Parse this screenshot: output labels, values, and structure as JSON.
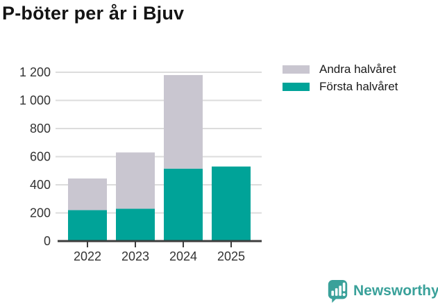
{
  "title": "P-böter per år i Bjuv",
  "legend": {
    "items": [
      {
        "label": "Andra halvåret",
        "color": "#c9c6d0"
      },
      {
        "label": "Första halvåret",
        "color": "#00a398"
      }
    ]
  },
  "chart_data": {
    "type": "bar",
    "stacked": true,
    "title": "P-böter per år i Bjuv",
    "xlabel": "",
    "ylabel": "",
    "categories": [
      "2022",
      "2023",
      "2024",
      "2025"
    ],
    "series": [
      {
        "name": "Första halvåret",
        "color": "#00a398",
        "values": [
          220,
          230,
          515,
          530
        ]
      },
      {
        "name": "Andra halvåret",
        "color": "#c9c6d0",
        "values": [
          225,
          400,
          665,
          0
        ]
      }
    ],
    "totals": [
      445,
      630,
      1180,
      530
    ],
    "ylim": [
      0,
      1200
    ],
    "yticks": [
      {
        "value": 0,
        "label": "0"
      },
      {
        "value": 200,
        "label": "200"
      },
      {
        "value": 400,
        "label": "400"
      },
      {
        "value": 600,
        "label": "600"
      },
      {
        "value": 800,
        "label": "800"
      },
      {
        "value": 1000,
        "label": "1 000"
      },
      {
        "value": 1200,
        "label": "1 200"
      }
    ],
    "grid": true,
    "legend_position": "top-right"
  },
  "branding": {
    "logo_text": "Newsworthy",
    "color": "#3aa19a"
  },
  "colors": {
    "first_half": "#00a398",
    "second_half": "#c9c6d0",
    "gridline": "#dcdcdc",
    "axis": "#3d3d3d",
    "tick_label": "#333333",
    "title_text": "#141414"
  }
}
